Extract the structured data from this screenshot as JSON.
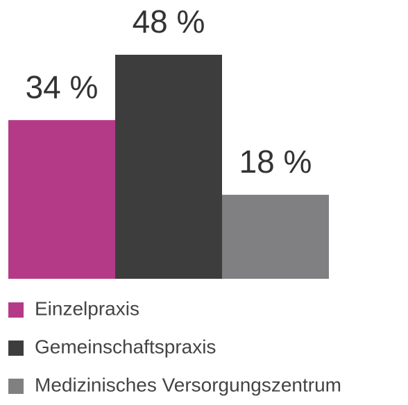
{
  "chart_data": {
    "type": "bar",
    "categories": [
      null
    ],
    "series": [
      {
        "name": "Einzelpraxis",
        "color": "#b43a88",
        "values": [
          34
        ],
        "value_labels": [
          "34 %"
        ]
      },
      {
        "name": "Gemeinschaftspraxis",
        "color": "#3d3d3d",
        "values": [
          48
        ],
        "value_labels": [
          "48 %"
        ]
      },
      {
        "name": "Medizinisches Versorgungszentrum",
        "color": "#808083",
        "values": [
          18
        ],
        "value_labels": [
          "18 %"
        ]
      }
    ]
  }
}
